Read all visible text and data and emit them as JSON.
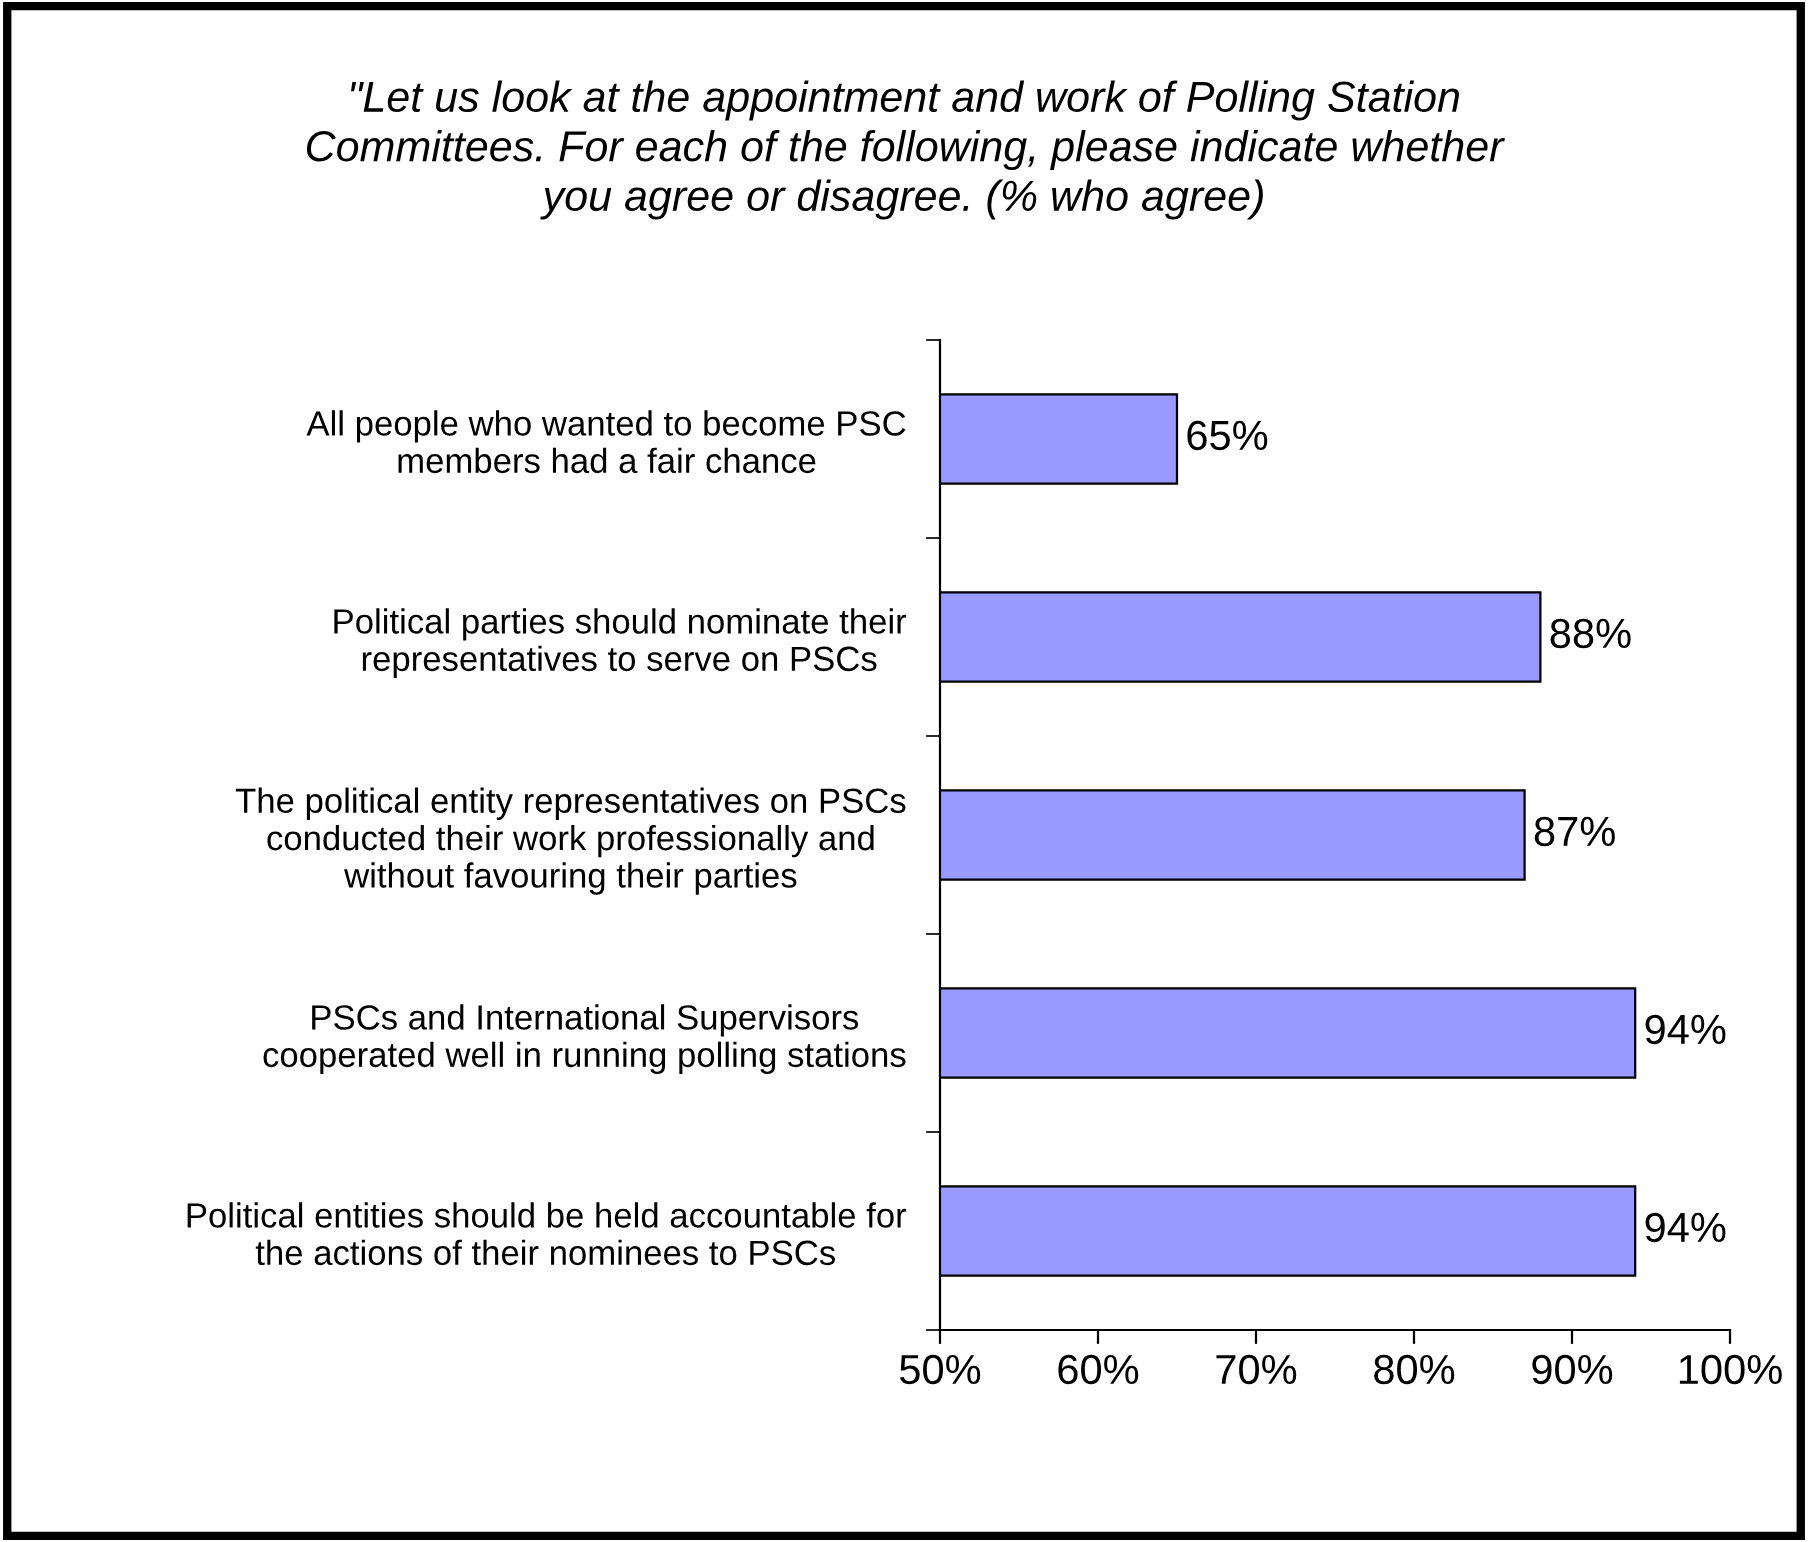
{
  "chart_data": {
    "type": "bar",
    "orientation": "horizontal",
    "title": "\"Let us look at the appointment and work of Polling Station\nCommittees. For each of the following, please indicate whether\nyou agree or disagree. (% who agree)",
    "categories": [
      "All people who wanted to become PSC\nmembers had a fair chance",
      "Political parties should nominate their\nrepresentatives to serve on PSCs",
      "The political entity representatives on PSCs\nconducted their work professionally and\nwithout favouring their parties",
      "PSCs and International Supervisors\ncooperated well in running polling stations",
      "Political entities should be held accountable for\nthe actions of their nominees to PSCs"
    ],
    "values": [
      65,
      88,
      87,
      94,
      94
    ],
    "color": "#9999ff",
    "value_labels": [
      "65%",
      "88%",
      "87%",
      "94%",
      "94%"
    ],
    "xlim": [
      50,
      100
    ],
    "xticks": [
      {
        "value": 50,
        "label": "50%"
      },
      {
        "value": 60,
        "label": "60%"
      },
      {
        "value": 70,
        "label": "70%"
      },
      {
        "value": 80,
        "label": "80%"
      },
      {
        "value": 90,
        "label": "90%"
      },
      {
        "value": 100,
        "label": "100%"
      }
    ],
    "grid": false,
    "legend": false
  }
}
